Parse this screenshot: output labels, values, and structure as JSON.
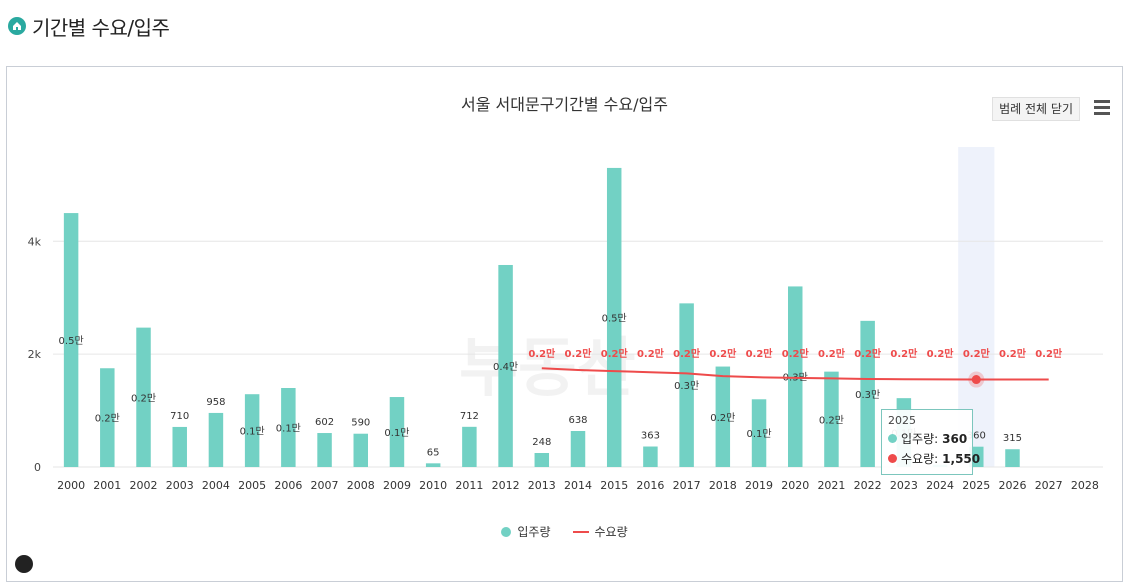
{
  "header": {
    "title": "기간별 수요/입주",
    "logo_icon": "home-icon"
  },
  "chart_toolbar": {
    "legend_toggle_label": "범례 전체 닫기",
    "menu_icon": "hamburger-menu-icon"
  },
  "colors": {
    "supply": "#72d1c4",
    "demand": "#ee4b4b",
    "highlight": "#eef2fb"
  },
  "chart_data": {
    "type": "bar",
    "title": "서울 서대문구기간별 수요/입주",
    "xlabel": "",
    "ylabel": "",
    "categories": [
      "2000",
      "2001",
      "2002",
      "2003",
      "2004",
      "2005",
      "2006",
      "2007",
      "2008",
      "2009",
      "2010",
      "2011",
      "2012",
      "2013",
      "2014",
      "2015",
      "2016",
      "2017",
      "2018",
      "2019",
      "2020",
      "2021",
      "2022",
      "2023",
      "2024",
      "2025",
      "2026",
      "2027",
      "2028"
    ],
    "y_ticks": [
      "0",
      "2k",
      "4k"
    ],
    "ylim": [
      0,
      5600
    ],
    "grid": true,
    "legend_position": "bottom",
    "highlighted_category": "2025",
    "series": [
      {
        "name": "입주량",
        "type": "bar",
        "values": [
          4500,
          1750,
          2470,
          710,
          958,
          1290,
          1400,
          602,
          590,
          1240,
          65,
          712,
          3580,
          248,
          638,
          5300,
          363,
          2900,
          1780,
          1200,
          3200,
          1690,
          2590,
          1220,
          40,
          360,
          315,
          0,
          0
        ],
        "labels": [
          "0.5만",
          "0.2만",
          "0.2만",
          "710",
          "958",
          "0.1만",
          "0.1만",
          "602",
          "590",
          "0.1만",
          "65",
          "712",
          "0.4만",
          "248",
          "638",
          "0.5만",
          "363",
          "0.3만",
          "0.2만",
          "0.1만",
          "0.3만",
          "0.2만",
          "0.3만",
          "0.1만",
          "",
          "360",
          "315",
          "",
          ""
        ]
      },
      {
        "name": "수요량",
        "type": "line",
        "values": [
          null,
          null,
          null,
          null,
          null,
          null,
          null,
          null,
          null,
          null,
          null,
          null,
          null,
          1750,
          1720,
          1700,
          1680,
          1660,
          1610,
          1590,
          1580,
          1570,
          1560,
          1555,
          1552,
          1550,
          1550,
          1550,
          null
        ],
        "labels": [
          "",
          "",
          "",
          "",
          "",
          "",
          "",
          "",
          "",
          "",
          "",
          "",
          "",
          "0.2만",
          "0.2만",
          "0.2만",
          "0.2만",
          "0.2만",
          "0.2만",
          "0.2만",
          "0.2만",
          "0.2만",
          "0.2만",
          "0.2만",
          "0.2만",
          "0.2만",
          "0.2만",
          "0.2만",
          ""
        ]
      }
    ],
    "tooltip": {
      "title": "2025",
      "rows": [
        {
          "label": "입주량: ",
          "value": "360"
        },
        {
          "label": "수요량: ",
          "value": "1,550"
        }
      ]
    }
  }
}
